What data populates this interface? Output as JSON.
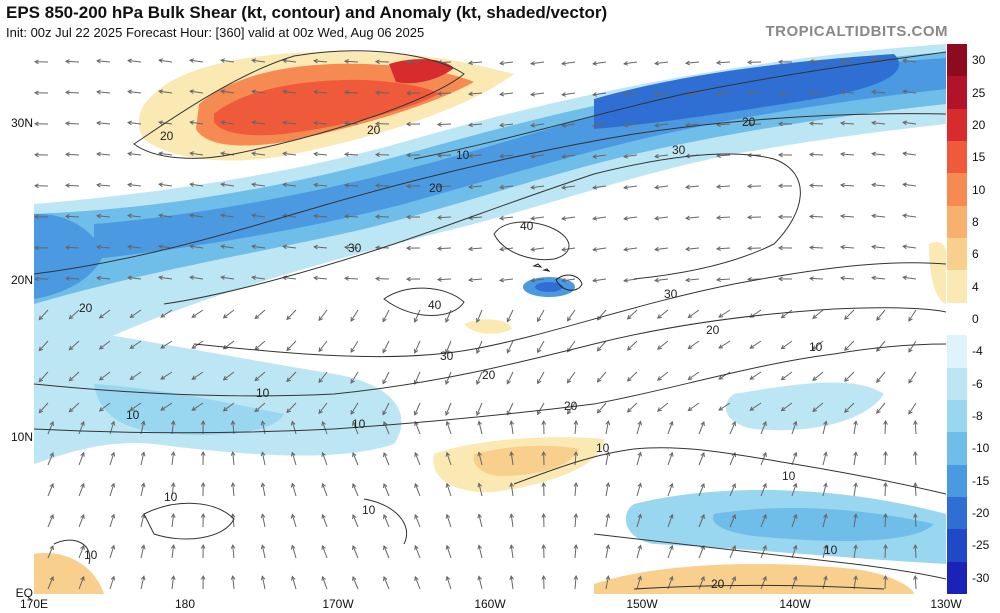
{
  "header": {
    "title": "EPS 850-200 hPa Bulk Shear (kt, contour) and Anomaly (kt, shaded/vector)",
    "subtitle": "Init: 00z Jul 22 2025   Forecast Hour: [360]   valid at 00z Wed, Aug 06 2025",
    "brand": "TROPICALTIDBITS.COM"
  },
  "axes": {
    "lat_labels": [
      "30N",
      "20N",
      "10N",
      "EQ"
    ],
    "lon_labels": [
      "170E",
      "180",
      "170W",
      "160W",
      "150W",
      "140W",
      "130W"
    ]
  },
  "colorbar": {
    "ticks": [
      "30",
      "25",
      "20",
      "15",
      "10",
      "8",
      "6",
      "4",
      "0",
      "-4",
      "-6",
      "-8",
      "-10",
      "-15",
      "-20",
      "-25",
      "-30"
    ],
    "colors": [
      "#8e0a1e",
      "#b3132a",
      "#d82b2e",
      "#ef5a3a",
      "#f58a52",
      "#f7b16e",
      "#f8cf8d",
      "#fbe9b4",
      "#ffffff",
      "#dff3fa",
      "#bde6f4",
      "#99d6ef",
      "#6fbde9",
      "#4b99e0",
      "#2f6fd4",
      "#1f49c6",
      "#1a22b8"
    ]
  },
  "contour_labels": [
    {
      "text": "20"
    },
    {
      "text": "20"
    },
    {
      "text": "10"
    },
    {
      "text": "20"
    },
    {
      "text": "30"
    },
    {
      "text": "20"
    },
    {
      "text": "30"
    },
    {
      "text": "20"
    },
    {
      "text": "40"
    },
    {
      "text": "40"
    },
    {
      "text": "30"
    },
    {
      "text": "30"
    },
    {
      "text": "20"
    },
    {
      "text": "20"
    },
    {
      "text": "10"
    },
    {
      "text": "10"
    },
    {
      "text": "20"
    },
    {
      "text": "10"
    },
    {
      "text": "10"
    },
    {
      "text": "10"
    },
    {
      "text": "10"
    },
    {
      "text": "10"
    },
    {
      "text": "10"
    },
    {
      "text": "10"
    },
    {
      "text": "10"
    },
    {
      "text": "20"
    }
  ]
}
